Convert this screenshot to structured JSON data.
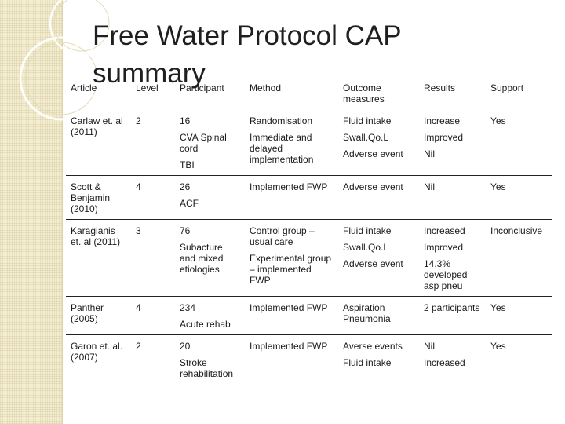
{
  "title": "Free Water Protocol CAP summary",
  "table": {
    "headers": [
      "Article",
      "Level",
      "Participant",
      "Method",
      "Outcome measures",
      "Results",
      "Support"
    ],
    "rows": [
      {
        "article": [
          "Carlaw et. al (2011)"
        ],
        "level": [
          "2"
        ],
        "participant": [
          "16",
          "CVA Spinal cord",
          "TBI"
        ],
        "method": [
          "Randomisation",
          "Immediate and delayed implementation"
        ],
        "outcome": [
          "Fluid intake",
          "Swall.Qo.L",
          "Adverse event"
        ],
        "results": [
          "Increase",
          "Improved",
          "Nil"
        ],
        "support": [
          "Yes"
        ]
      },
      {
        "article": [
          "Scott & Benjamin (2010)"
        ],
        "level": [
          "4"
        ],
        "participant": [
          "26",
          "ACF"
        ],
        "method": [
          "Implemented FWP"
        ],
        "outcome": [
          "Adverse event"
        ],
        "results": [
          "Nil"
        ],
        "support": [
          "Yes"
        ]
      },
      {
        "article": [
          "Karagianis et. al (2011)"
        ],
        "level": [
          "3"
        ],
        "participant": [
          "76",
          "Subacture and mixed etiologies"
        ],
        "method": [
          "Control group – usual care",
          "Experimental group – implemented FWP"
        ],
        "outcome": [
          "Fluid intake",
          "Swall.Qo.L",
          "Adverse event"
        ],
        "results": [
          "Increased",
          "Improved",
          "14.3% developed asp pneu"
        ],
        "support": [
          "Inconclusive"
        ]
      },
      {
        "article": [
          "Panther (2005)"
        ],
        "level": [
          "4"
        ],
        "participant": [
          "234",
          "Acute rehab"
        ],
        "method": [
          "Implemented FWP"
        ],
        "outcome": [
          "Aspiration Pneumonia"
        ],
        "results": [
          "2 participants"
        ],
        "support": [
          "Yes"
        ]
      },
      {
        "article": [
          "Garon et. al. (2007)"
        ],
        "level": [
          "2"
        ],
        "participant": [
          "20",
          "Stroke rehabilitation"
        ],
        "method": [
          "Implemented FWP"
        ],
        "outcome": [
          "Averse events",
          "Fluid intake"
        ],
        "results": [
          "Nil",
          "Increased"
        ],
        "support": [
          "Yes"
        ]
      }
    ]
  }
}
